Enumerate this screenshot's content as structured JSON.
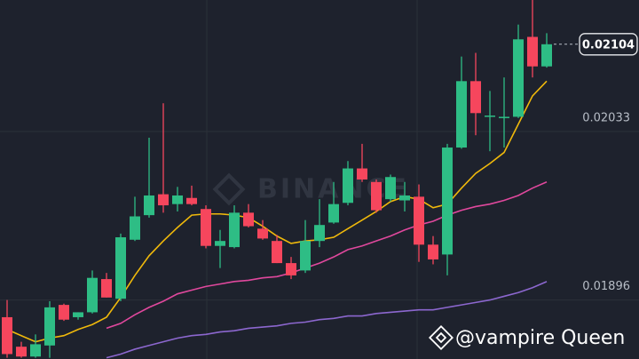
{
  "chart_data": {
    "type": "candlestick",
    "ylim": [
      0.01848,
      0.0214
    ],
    "yticks": [
      0.02033,
      0.01896
    ],
    "grid": true,
    "last_price": 0.02104,
    "watermark": "BINANCE",
    "credit": "@vampire Queen",
    "up_color": "#2ebd85",
    "down_color": "#f6465d",
    "open": [
      0.01882,
      0.01858,
      0.0185,
      0.01859,
      0.01892,
      0.01882,
      0.01886,
      0.01913,
      0.01897,
      0.01945,
      0.01965,
      0.01982,
      0.01974,
      0.01979,
      0.0197,
      0.0194,
      0.01939,
      0.01967,
      0.01954,
      0.01944,
      0.01926,
      0.0192,
      0.01944,
      0.01959,
      0.01975,
      0.02003,
      0.01992,
      0.01978,
      0.01977,
      0.0198,
      0.01941,
      0.01933,
      0.0202,
      0.02074,
      0.02045,
      0.02044,
      0.02045,
      0.0211,
      0.02086
    ],
    "high": [
      0.01896,
      0.01862,
      0.01868,
      0.01895,
      0.01893,
      0.01886,
      0.0192,
      0.01918,
      0.0195,
      0.0198,
      0.02028,
      0.02056,
      0.01988,
      0.01989,
      0.01973,
      0.01953,
      0.01973,
      0.01974,
      0.01961,
      0.01949,
      0.01931,
      0.01961,
      0.01978,
      0.01992,
      0.02009,
      0.02023,
      0.01994,
      0.01998,
      0.01992,
      0.0199,
      0.01948,
      0.02023,
      0.02094,
      0.02097,
      0.02066,
      0.02077,
      0.0212,
      0.0214,
      0.02113
    ],
    "low": [
      0.01849,
      0.01849,
      0.01849,
      0.01849,
      0.01879,
      0.0188,
      0.01885,
      0.01898,
      0.01895,
      0.01944,
      0.01963,
      0.01967,
      0.01968,
      0.01973,
      0.01938,
      0.01922,
      0.01938,
      0.01955,
      0.01945,
      0.01926,
      0.01913,
      0.01918,
      0.01939,
      0.01958,
      0.01973,
      0.01992,
      0.01967,
      0.01976,
      0.01968,
      0.01927,
      0.01925,
      0.01916,
      0.02019,
      0.0203,
      0.02017,
      0.0202,
      0.02044,
      0.02077,
      0.02085
    ],
    "close": [
      0.01852,
      0.0185,
      0.0186,
      0.0189,
      0.0188,
      0.01886,
      0.01914,
      0.01898,
      0.01947,
      0.01964,
      0.01981,
      0.01973,
      0.01981,
      0.01974,
      0.0194,
      0.01944,
      0.01967,
      0.01956,
      0.01946,
      0.01926,
      0.01916,
      0.01944,
      0.01957,
      0.01974,
      0.02003,
      0.01994,
      0.01969,
      0.01996,
      0.01981,
      0.01941,
      0.01929,
      0.0202,
      0.02074,
      0.02048,
      0.02046,
      0.02045,
      0.02108,
      0.02086,
      0.02104
    ],
    "lines": [
      {
        "color": "#f0b90b",
        "values": [
          0.01872,
          0.01867,
          0.01862,
          0.01865,
          0.01867,
          0.01872,
          0.01876,
          0.01882,
          0.01898,
          0.01916,
          0.01932,
          0.01944,
          0.01955,
          0.01965,
          0.01966,
          0.01966,
          0.01965,
          0.01963,
          0.01956,
          0.01948,
          0.01942,
          0.01944,
          0.01945,
          0.01947,
          0.01954,
          0.01961,
          0.01968,
          0.01976,
          0.0198,
          0.01978,
          0.01971,
          0.01974,
          0.01987,
          0.01999,
          0.02007,
          0.02016,
          0.02039,
          0.02062,
          0.02074
        ]
      },
      {
        "color": "#e0489d",
        "values": [
          null,
          null,
          null,
          null,
          null,
          null,
          null,
          0.01873,
          0.01877,
          0.01884,
          0.0189,
          0.01895,
          0.01901,
          0.01904,
          0.01907,
          0.01909,
          0.01911,
          0.01912,
          0.01914,
          0.01915,
          0.01918,
          0.01922,
          0.01926,
          0.01931,
          0.01937,
          0.0194,
          0.01944,
          0.01948,
          0.01953,
          0.01957,
          0.0196,
          0.01965,
          0.01969,
          0.01972,
          0.01974,
          0.01977,
          0.01981,
          0.01987,
          0.01992
        ]
      },
      {
        "color": "#8c67cf",
        "values": [
          null,
          null,
          null,
          null,
          null,
          null,
          null,
          0.01849,
          0.01852,
          0.01856,
          0.01859,
          0.01862,
          0.01865,
          0.01867,
          0.01868,
          0.0187,
          0.01871,
          0.01873,
          0.01874,
          0.01875,
          0.01877,
          0.01878,
          0.0188,
          0.01881,
          0.01883,
          0.01883,
          0.01885,
          0.01886,
          0.01887,
          0.01888,
          0.01888,
          0.0189,
          0.01892,
          0.01894,
          0.01896,
          0.01899,
          0.01902,
          0.01906,
          0.01911
        ]
      }
    ]
  }
}
